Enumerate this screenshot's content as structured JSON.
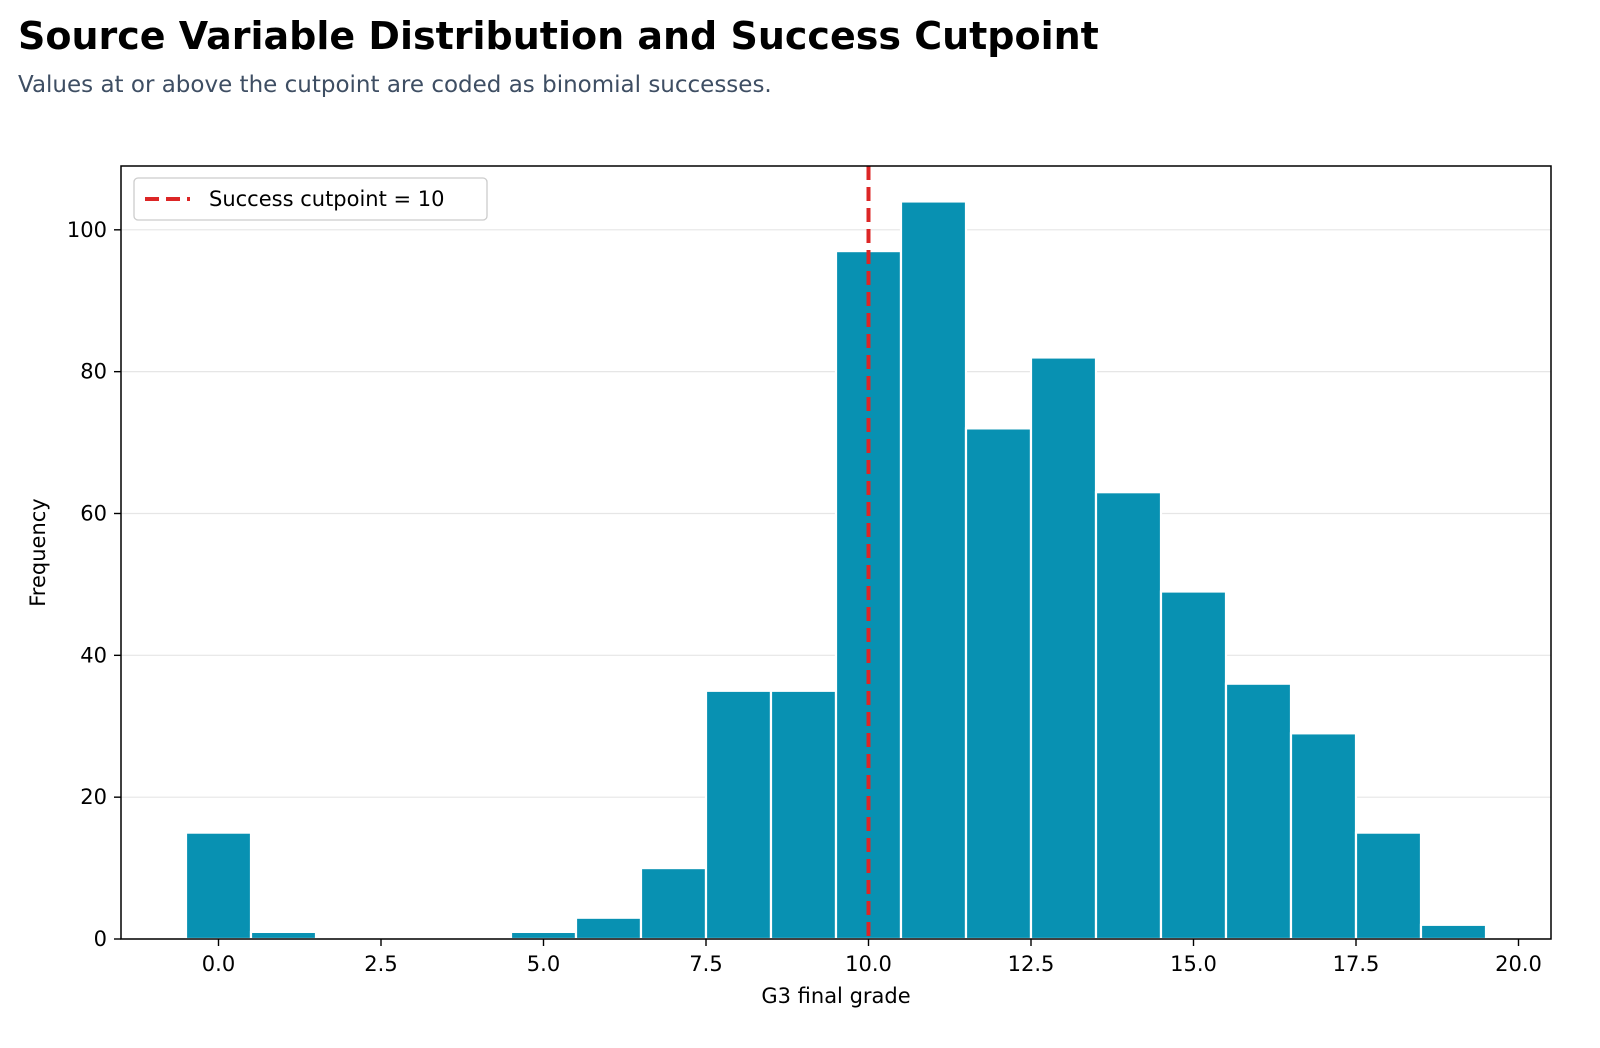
{
  "header": {
    "title": "Source Variable Distribution and Success Cutpoint",
    "subtitle": "Values at or above the cutpoint are coded as binomial successes."
  },
  "chart_data": {
    "type": "bar",
    "subtype": "histogram",
    "xlabel": "G3 final grade",
    "ylabel": "Frequency",
    "xlim": [
      -1.5,
      20.5
    ],
    "ylim": [
      0,
      109
    ],
    "x_ticks": [
      "0.0",
      "2.5",
      "5.0",
      "7.5",
      "10.0",
      "12.5",
      "15.0",
      "17.5",
      "20.0"
    ],
    "y_ticks": [
      "0",
      "20",
      "40",
      "60",
      "80",
      "100"
    ],
    "grid": "horizontal",
    "legend_position": "top-left",
    "bar_color": "#0891b2",
    "bins": [
      {
        "left": -0.5,
        "right": 0.5,
        "count": 15
      },
      {
        "left": 0.5,
        "right": 1.5,
        "count": 1
      },
      {
        "left": 4.5,
        "right": 5.5,
        "count": 1
      },
      {
        "left": 5.5,
        "right": 6.5,
        "count": 3
      },
      {
        "left": 6.5,
        "right": 7.5,
        "count": 10
      },
      {
        "left": 7.5,
        "right": 8.5,
        "count": 35
      },
      {
        "left": 8.5,
        "right": 9.5,
        "count": 35
      },
      {
        "left": 9.5,
        "right": 10.5,
        "count": 97
      },
      {
        "left": 10.5,
        "right": 11.5,
        "count": 104
      },
      {
        "left": 11.5,
        "right": 12.5,
        "count": 72
      },
      {
        "left": 12.5,
        "right": 13.5,
        "count": 82
      },
      {
        "left": 13.5,
        "right": 14.5,
        "count": 63
      },
      {
        "left": 14.5,
        "right": 15.5,
        "count": 49
      },
      {
        "left": 15.5,
        "right": 16.5,
        "count": 36
      },
      {
        "left": 16.5,
        "right": 17.5,
        "count": 29
      },
      {
        "left": 17.5,
        "right": 18.5,
        "count": 15
      },
      {
        "left": 18.5,
        "right": 19.5,
        "count": 2
      }
    ],
    "cutpoint": {
      "value": 10,
      "label": "Success cutpoint = 10",
      "color": "#dc2626",
      "style": "dashed"
    }
  }
}
